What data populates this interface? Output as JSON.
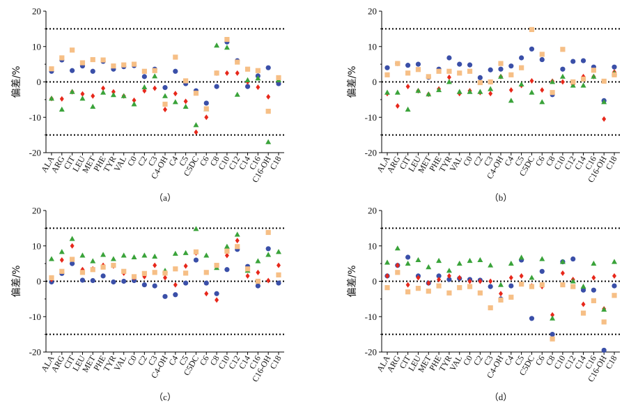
{
  "figure": {
    "panels": [
      "（a）",
      "（b）",
      "（c）",
      "（d）"
    ]
  },
  "styles": {
    "series_colors": [
      "#3a4fa8",
      "#e7281b",
      "#3aa33a",
      "#f6bf86"
    ],
    "series_shapes": [
      "circle",
      "diamond",
      "triangle",
      "square"
    ],
    "reference_line_color": "#000000"
  },
  "chart_data": [
    {
      "type": "scatter",
      "panel_label": "（a）",
      "ylabel": "偏差/%",
      "ylim": [
        -20,
        20
      ],
      "yticks": [
        -20,
        -10,
        0,
        10,
        20
      ],
      "reference_lines": [
        15,
        0,
        -15
      ],
      "categories": [
        "ALA",
        "ARG",
        "CIT",
        "LEU",
        "MET",
        "PHE",
        "TYR",
        "VAL",
        "C0",
        "C2",
        "C3",
        "C4-OH",
        "C4",
        "C5",
        "C5DC",
        "C6",
        "C8",
        "C10",
        "C12",
        "C14",
        "C16",
        "C16-OH",
        "C18"
      ],
      "series": [
        {
          "values": [
            3.0,
            6.2,
            3.2,
            4.5,
            3.0,
            5.8,
            3.6,
            4.3,
            4.6,
            1.5,
            3.6,
            -1.6,
            3.0,
            -0.5,
            -2.5,
            -6.0,
            -1.3,
            11.3,
            6.0,
            -1.3,
            1.7,
            4.0,
            -0.5
          ]
        },
        {
          "values": [
            -4.7,
            -4.8,
            -2.8,
            -3.4,
            -4.0,
            -1.8,
            -2.8,
            -4.0,
            -5.2,
            -2.5,
            -1.8,
            -7.8,
            -3.3,
            -5.5,
            -14.2,
            -10.0,
            2.5,
            2.5,
            2.5,
            0.0,
            -1.5,
            -4.2,
            0.5
          ]
        },
        {
          "values": [
            -4.7,
            -7.8,
            -2.8,
            -4.7,
            -7.0,
            -3.0,
            -3.7,
            -4.0,
            -6.3,
            -1.5,
            1.6,
            -4.0,
            -5.7,
            -7.0,
            -12.2,
            -7.7,
            10.3,
            9.7,
            -3.6,
            0.5,
            1.0,
            -17.0,
            0.5
          ]
        },
        {
          "values": [
            3.7,
            6.8,
            9.0,
            5.4,
            6.3,
            6.2,
            4.5,
            4.8,
            5.0,
            3.0,
            3.2,
            -6.3,
            7.0,
            0.3,
            -3.2,
            -7.6,
            2.5,
            12.0,
            5.6,
            3.6,
            3.2,
            -8.3,
            1.2
          ]
        }
      ]
    },
    {
      "type": "scatter",
      "panel_label": "（b）",
      "ylabel": "偏差/%",
      "ylim": [
        -20,
        20
      ],
      "yticks": [
        -20,
        -10,
        0,
        10,
        20
      ],
      "reference_lines": [
        15,
        0,
        -15
      ],
      "categories": [
        "ALA",
        "ARG",
        "CIT",
        "LEU",
        "MET",
        "PHE",
        "TYR",
        "VAL",
        "C0",
        "C2",
        "C3",
        "C4-OH",
        "C4",
        "C5",
        "C5DC",
        "C6",
        "C8",
        "C10",
        "C12",
        "C14",
        "C16",
        "C16-OH",
        "C18"
      ],
      "series": [
        {
          "values": [
            4.0,
            5.2,
            4.7,
            5.0,
            1.3,
            3.6,
            6.8,
            5.0,
            4.8,
            1.2,
            3.4,
            3.6,
            4.5,
            6.8,
            9.3,
            6.3,
            -3.6,
            3.6,
            5.8,
            6.0,
            4.2,
            -5.3,
            4.2
          ]
        },
        {
          "values": [
            -3.3,
            -6.8,
            -1.3,
            -2.5,
            -3.5,
            -2.0,
            1.3,
            -3.3,
            -2.5,
            -3.0,
            -3.3,
            1.5,
            -2.3,
            -1.0,
            0.3,
            -2.3,
            0.2,
            0.0,
            -0.7,
            1.5,
            1.5,
            -10.5,
            2.8
          ]
        },
        {
          "values": [
            -3.0,
            -3.0,
            -7.8,
            -2.5,
            -3.5,
            -2.3,
            0.0,
            -2.8,
            -2.8,
            -2.8,
            -2.0,
            1.5,
            -5.3,
            -0.7,
            -3.0,
            -5.7,
            0.0,
            1.5,
            -1.0,
            -1.0,
            1.5,
            -5.7,
            2.5
          ]
        },
        {
          "values": [
            2.0,
            5.2,
            2.5,
            3.5,
            1.5,
            3.0,
            3.0,
            2.5,
            3.0,
            -0.2,
            0.0,
            5.2,
            2.0,
            4.0,
            14.8,
            7.8,
            -3.0,
            9.2,
            0.0,
            0.8,
            3.3,
            0.2,
            2.0
          ]
        }
      ]
    },
    {
      "type": "scatter",
      "panel_label": "（c）",
      "ylabel": "偏差/%",
      "ylim": [
        -20,
        20
      ],
      "yticks": [
        -20,
        -10,
        0,
        10,
        20
      ],
      "reference_lines": [
        15,
        0,
        -15
      ],
      "categories": [
        "ALA",
        "ARG",
        "CIT",
        "LEU",
        "MET",
        "PHE",
        "TYR",
        "VAL",
        "C0",
        "C2",
        "C3",
        "C4-OH",
        "C4",
        "C5",
        "C5DC",
        "C6",
        "C8",
        "C10",
        "C12",
        "C14",
        "C16",
        "C16-OH",
        "C18"
      ],
      "series": [
        {
          "values": [
            -0.2,
            2.2,
            5.0,
            0.3,
            0.2,
            1.5,
            -0.2,
            0.0,
            0.2,
            -1.0,
            -1.3,
            -4.3,
            -3.8,
            -0.5,
            6.0,
            -0.5,
            -3.5,
            3.3,
            9.0,
            4.2,
            -1.3,
            9.2,
            -0.5
          ]
        },
        {
          "values": [
            0.5,
            6.0,
            10.0,
            3.3,
            3.5,
            4.5,
            4.3,
            2.3,
            1.0,
            1.3,
            4.5,
            1.0,
            -1.0,
            4.3,
            8.0,
            -3.5,
            -5.3,
            7.3,
            11.5,
            1.5,
            2.5,
            0.2,
            4.5
          ]
        },
        {
          "values": [
            6.3,
            8.3,
            12.0,
            7.3,
            5.7,
            7.5,
            6.3,
            7.3,
            6.8,
            7.3,
            7.0,
            3.0,
            7.8,
            8.0,
            14.8,
            7.3,
            3.8,
            9.8,
            13.2,
            3.0,
            5.7,
            7.5,
            8.3
          ]
        },
        {
          "values": [
            1.0,
            2.8,
            6.2,
            2.5,
            3.3,
            4.0,
            4.5,
            2.8,
            1.3,
            2.2,
            2.5,
            2.3,
            3.5,
            2.3,
            8.3,
            2.5,
            4.5,
            8.5,
            9.8,
            3.5,
            0.0,
            13.8,
            1.8
          ]
        }
      ]
    },
    {
      "type": "scatter",
      "panel_label": "（d）",
      "ylabel": "偏差/%",
      "ylim": [
        -20,
        20
      ],
      "yticks": [
        -20,
        -10,
        0,
        10,
        20
      ],
      "reference_lines": [
        15,
        0,
        -15
      ],
      "categories": [
        "ALA",
        "ARG",
        "CIT",
        "LEU",
        "MET",
        "PHE",
        "TYR",
        "VAL",
        "C0",
        "C2",
        "C3",
        "C4-OH",
        "C4",
        "C5",
        "C5DC",
        "C6",
        "C8",
        "C10",
        "C12",
        "C14",
        "C16",
        "C16-OH",
        "C18"
      ],
      "series": [
        {
          "values": [
            1.5,
            4.5,
            6.8,
            1.5,
            -0.5,
            1.5,
            0.5,
            0.8,
            0.5,
            0.3,
            -1.5,
            -5.0,
            -1.3,
            6.0,
            -10.5,
            2.8,
            -15.0,
            5.5,
            6.3,
            -2.5,
            -2.5,
            -19.5,
            -1.3
          ]
        },
        {
          "values": [
            1.5,
            4.5,
            -1.0,
            1.0,
            -0.5,
            0.5,
            1.5,
            1.0,
            0.0,
            0.0,
            0.0,
            -3.5,
            1.0,
            1.5,
            -1.3,
            -1.5,
            -9.5,
            2.3,
            0.5,
            -6.5,
            1.0,
            -7.8,
            1.5
          ]
        },
        {
          "values": [
            5.3,
            9.3,
            5.0,
            6.0,
            4.0,
            5.8,
            3.0,
            5.0,
            5.8,
            6.0,
            4.5,
            -1.0,
            5.0,
            6.7,
            1.0,
            6.3,
            -10.5,
            5.5,
            0.0,
            -1.5,
            5.0,
            -8.0,
            5.5
          ]
        },
        {
          "values": [
            -1.8,
            2.5,
            -3.0,
            -2.0,
            -2.8,
            -1.3,
            -3.3,
            -1.8,
            -1.5,
            -3.3,
            -7.5,
            -5.3,
            -4.5,
            -0.8,
            -1.5,
            -1.0,
            -16.3,
            -1.0,
            -1.5,
            -9.0,
            -5.5,
            -11.5,
            -4.0
          ]
        }
      ]
    }
  ]
}
